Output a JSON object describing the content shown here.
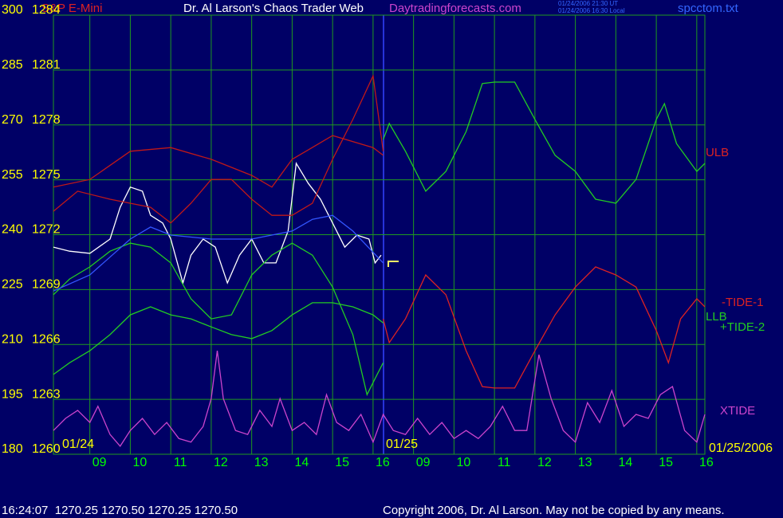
{
  "chart_data": {
    "type": "line",
    "instrument": "S&P E-Mini",
    "title": "Dr. Al Larson's Chaos Trader Web",
    "site": "Daytradingforecasts.com",
    "timestamps": [
      "01/24/2006 21:30 UT",
      "01/24/2006 16:30 Local"
    ],
    "file": "spcctom.txt",
    "date_labels": [
      "01/24",
      "01/25",
      "01/25/2006"
    ],
    "right_labels": [
      "ULB",
      "-TIDE-1",
      "LLB",
      "+TIDE-2",
      "XTIDE"
    ],
    "status": "16:24:07  1270.25 1270.50 1270.25 1270.50",
    "copyright": "Copyright 2006, Dr. Al Larson. May not be copied by any means.",
    "grid": true,
    "xlim": [
      -0.9,
      15.2
    ],
    "xticks": [
      {
        "value": 0,
        "label": "09"
      },
      {
        "value": 1,
        "label": "10"
      },
      {
        "value": 2,
        "label": "11"
      },
      {
        "value": 3,
        "label": "12"
      },
      {
        "value": 4,
        "label": "13"
      },
      {
        "value": 5,
        "label": "14"
      },
      {
        "value": 6,
        "label": "15"
      },
      {
        "value": 7,
        "label": "16"
      },
      {
        "value": 8,
        "label": "09"
      },
      {
        "value": 9,
        "label": "10"
      },
      {
        "value": 10,
        "label": "11"
      },
      {
        "value": 11,
        "label": "12"
      },
      {
        "value": 12,
        "label": "13"
      },
      {
        "value": 13,
        "label": "14"
      },
      {
        "value": 14,
        "label": "15"
      },
      {
        "value": 15,
        "label": "16"
      }
    ],
    "ylim": [
      180,
      300
    ],
    "yticks": [
      180,
      195,
      210,
      225,
      240,
      255,
      270,
      285,
      300
    ],
    "y2lim": [
      1260,
      1284
    ],
    "y2ticks": [
      1260,
      1263,
      1266,
      1269,
      1272,
      1275,
      1278,
      1281,
      1284
    ],
    "series": [
      {
        "color": "#ffffff",
        "x": [
          -0.9,
          -0.5,
          0,
          0.5,
          0.75,
          1,
          1.3,
          1.5,
          1.8,
          2,
          2.3,
          2.5,
          2.8,
          3.1,
          3.4,
          3.7,
          4,
          4.3,
          4.6,
          4.9,
          5.1,
          5.4,
          5.7,
          6,
          6.3,
          6.6,
          6.9,
          7.05,
          7.2
        ],
        "values": [
          236.6,
          235.5,
          234.9,
          238.8,
          247.5,
          253.0,
          251.9,
          245.3,
          243.2,
          238.8,
          226.8,
          234.4,
          238.8,
          236.6,
          226.8,
          234.4,
          238.8,
          232.3,
          232.3,
          241.0,
          259.5,
          254.0,
          249.7,
          243.2,
          236.6,
          239.9,
          238.8,
          232.3,
          234.4
        ]
      },
      {
        "color": "#c01818",
        "x": [
          -0.9,
          0,
          1,
          2,
          3,
          4,
          4.5,
          5,
          6,
          7,
          7.25
        ],
        "values": [
          253.0,
          255.1,
          262.8,
          263.8,
          260.6,
          256.2,
          253.0,
          260.6,
          267.1,
          263.8,
          261.7
        ]
      },
      {
        "color": "#c01818",
        "x": [
          -0.9,
          -0.3,
          0.5,
          1.5,
          2,
          2.5,
          3,
          3.5,
          4,
          4.5,
          5,
          5.5,
          6,
          6.5,
          7,
          7.25
        ],
        "values": [
          246.4,
          251.9,
          249.7,
          247.5,
          243.2,
          248.6,
          255.1,
          255.1,
          249.7,
          245.3,
          245.3,
          248.6,
          260.6,
          271.5,
          283.4,
          262.8
        ]
      },
      {
        "color": "#22cc22",
        "x": [
          -0.9,
          -0.5,
          0,
          0.5,
          1,
          1.5,
          2,
          2.5,
          3,
          3.5,
          4,
          4.5,
          5,
          5.5,
          6,
          6.5,
          6.85,
          7.1,
          7.25
        ],
        "values": [
          223.6,
          227.9,
          231.2,
          235.5,
          237.7,
          236.6,
          232.3,
          222.5,
          217.0,
          218.1,
          229.0,
          234.4,
          237.7,
          234.4,
          225.7,
          212.7,
          196.3,
          201.8,
          205.0
        ]
      },
      {
        "color": "#22cc22",
        "x": [
          -0.9,
          -0.5,
          0,
          0.5,
          1,
          1.5,
          2,
          2.5,
          3,
          3.5,
          4,
          4.5,
          5,
          5.5,
          6,
          6.5,
          7,
          7.25
        ],
        "values": [
          201.8,
          205.0,
          208.3,
          212.7,
          218.1,
          220.3,
          218.1,
          217.0,
          214.8,
          212.7,
          211.6,
          213.8,
          218.1,
          221.4,
          221.4,
          220.3,
          218.1,
          215.9
        ]
      },
      {
        "color": "#3355ff",
        "x": [
          -0.9,
          0,
          1,
          1.5,
          2,
          3,
          4,
          5,
          5.5,
          6,
          6.5,
          7.25
        ],
        "values": [
          224.6,
          229.0,
          238.8,
          242.1,
          239.9,
          238.8,
          238.8,
          241.0,
          244.2,
          245.3,
          241.0,
          232.3
        ]
      },
      {
        "color": "#22cc22",
        "x": [
          7.25,
          7.4,
          7.8,
          8.3,
          8.8,
          9.3,
          9.7,
          10,
          10.5,
          11,
          11.5,
          12,
          12.5,
          13,
          13.5,
          14,
          14.2,
          14.5,
          15,
          15.2
        ],
        "values": [
          266.0,
          270.4,
          262.8,
          251.9,
          257.3,
          268.2,
          281.3,
          281.7,
          281.7,
          271.5,
          261.7,
          257.3,
          249.7,
          248.6,
          255.1,
          271.5,
          275.8,
          264.9,
          257.3,
          259.5
        ]
      },
      {
        "color": "#dd2222",
        "x": [
          7.25,
          7.4,
          7.8,
          8.3,
          8.8,
          9.3,
          9.7,
          10,
          10.5,
          11,
          11.5,
          12,
          12.5,
          13,
          13.5,
          14,
          14.3,
          14.6,
          15,
          15.2
        ],
        "values": [
          217.0,
          210.5,
          217.0,
          229.0,
          223.6,
          208.3,
          198.5,
          198.1,
          198.1,
          208.3,
          218.1,
          225.7,
          231.2,
          229.0,
          225.7,
          213.8,
          205.0,
          217.0,
          222.5,
          220.3
        ]
      },
      {
        "color": "#cc44cc",
        "x": [
          -0.9,
          -0.6,
          -0.3,
          0,
          0.2,
          0.5,
          0.75,
          1,
          1.3,
          1.6,
          1.9,
          2.2,
          2.5,
          2.8,
          3.0,
          3.15,
          3.3,
          3.6,
          3.9,
          4.2,
          4.5,
          4.7,
          5.0,
          5.3,
          5.6,
          5.85,
          6.1,
          6.4,
          6.7,
          7.0,
          7.25,
          7.5,
          7.8,
          8.1,
          8.4,
          8.7,
          9.0,
          9.3,
          9.6,
          9.9,
          10.2,
          10.5,
          10.8,
          11.1,
          11.4,
          11.7,
          12.0,
          12.3,
          12.6,
          12.9,
          13.2,
          13.5,
          13.8,
          14.1,
          14.4,
          14.7,
          15.0,
          15.2
        ],
        "values": [
          186.5,
          189.8,
          192.0,
          188.7,
          193.1,
          185.4,
          182.2,
          186.5,
          189.8,
          185.4,
          188.7,
          184.3,
          183.3,
          187.6,
          195.2,
          208.3,
          195.2,
          186.5,
          185.4,
          192.0,
          187.6,
          195.2,
          186.5,
          188.7,
          185.4,
          196.3,
          188.7,
          186.5,
          190.9,
          183.3,
          190.9,
          186.5,
          185.4,
          189.8,
          185.4,
          188.7,
          184.3,
          186.5,
          184.3,
          187.6,
          193.1,
          186.5,
          186.5,
          207.2,
          195.2,
          186.5,
          183.3,
          194.1,
          188.7,
          197.4,
          187.6,
          190.9,
          189.8,
          196.3,
          198.5,
          186.5,
          183.3,
          190.9
        ]
      }
    ]
  }
}
